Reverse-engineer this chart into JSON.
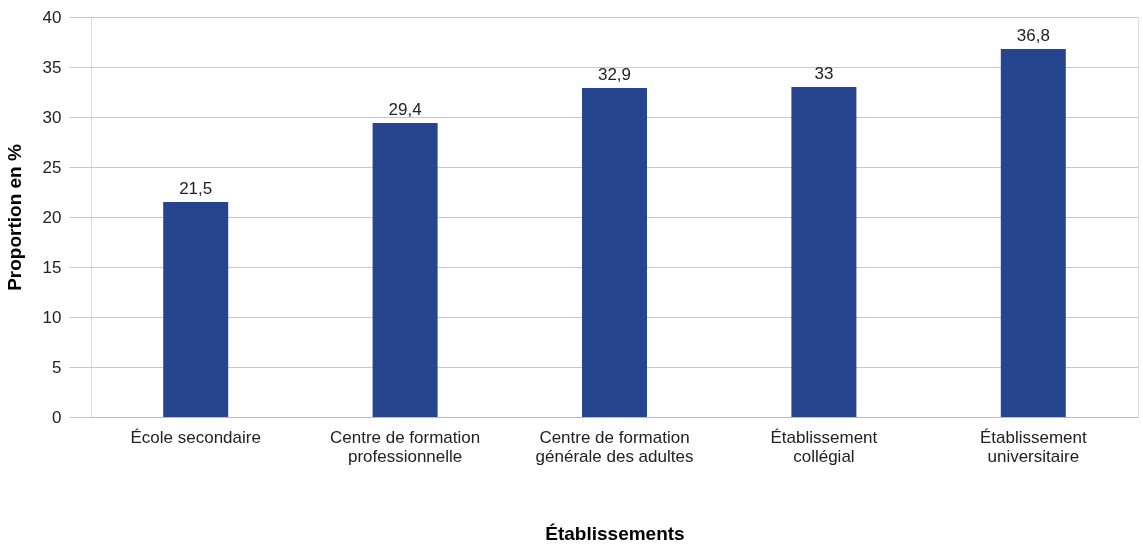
{
  "chart_data": {
    "type": "bar",
    "xlabel": "Établissements",
    "ylabel": "Proportion en %",
    "categories": [
      "École secondaire",
      "Centre de formation professionnelle",
      "Centre de formation générale des adultes",
      "Établissement collégial",
      "Établissement universitaire"
    ],
    "values": [
      21.5,
      29.4,
      32.9,
      33,
      36.8
    ],
    "color": "#27448f",
    "ylim": [
      0,
      40
    ],
    "yticks": [
      0,
      5,
      10,
      15,
      20,
      25,
      30,
      35,
      40
    ],
    "value_labels": [
      "21,5",
      "29,4",
      "32,9",
      "33",
      "36,8"
    ],
    "grid": "y"
  }
}
